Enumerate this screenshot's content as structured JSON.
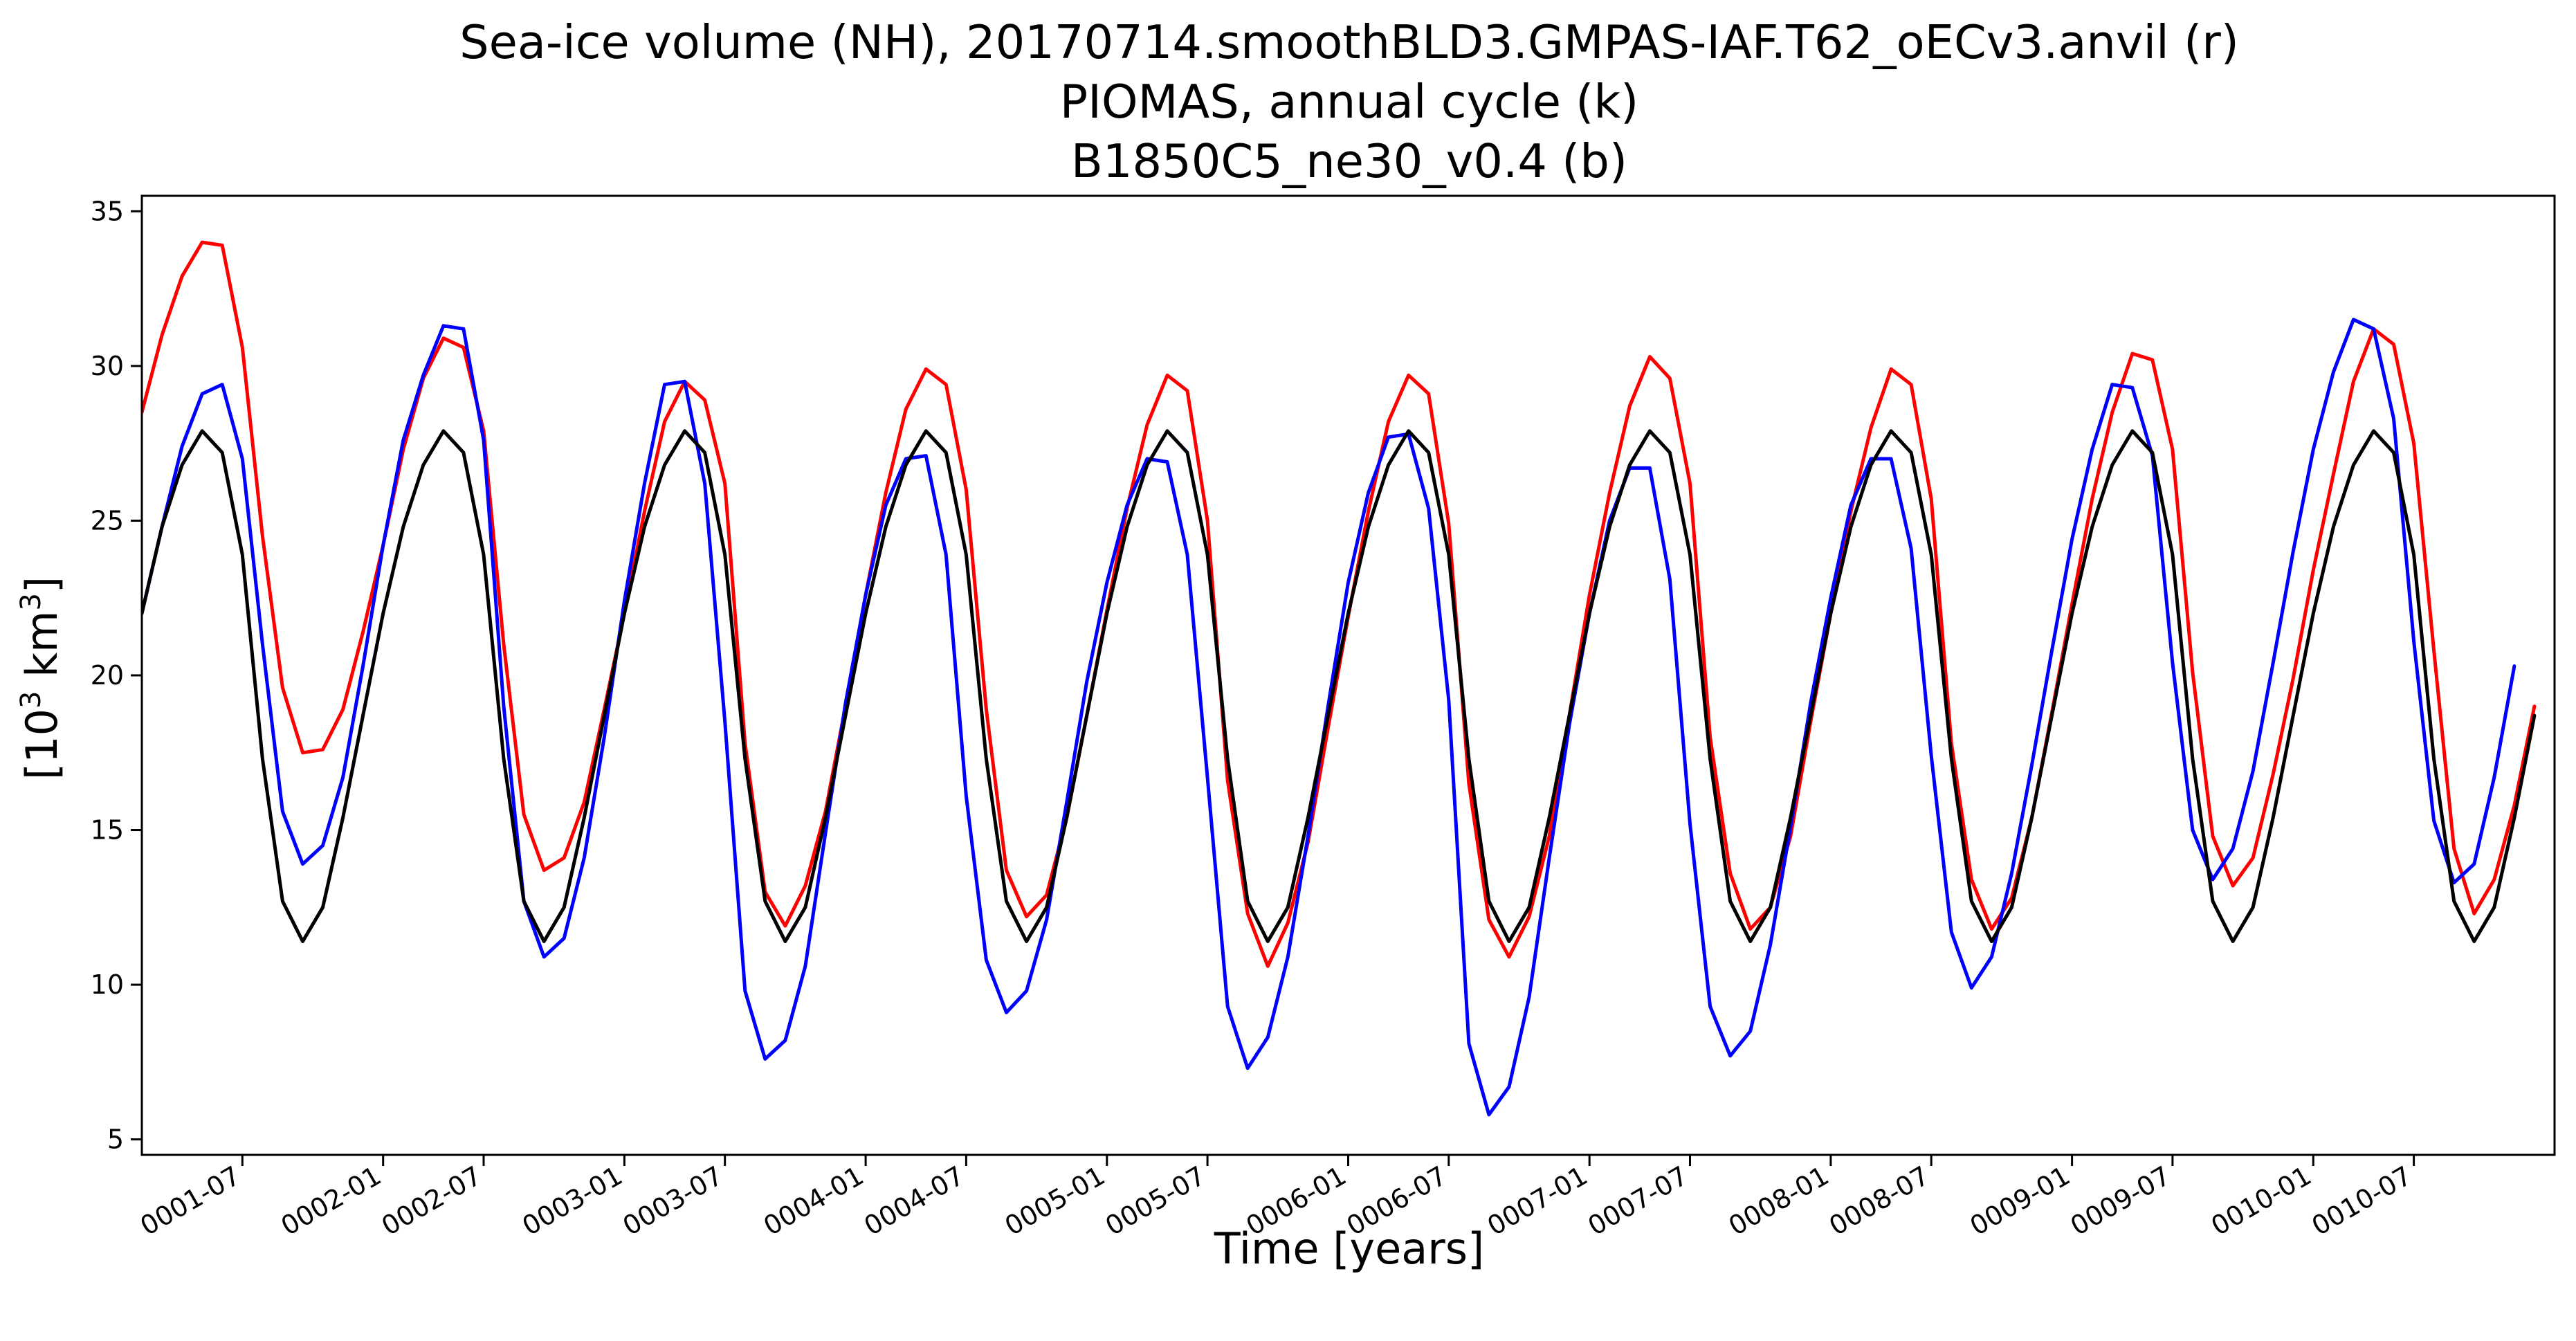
{
  "chart_data": {
    "type": "line",
    "title": [
      "Sea-ice volume (NH), 20170714.smoothBLD3.GMPAS-IAF.T62_oECv3.anvil (r)",
      "PIOMAS, annual cycle (k)",
      "B1850C5_ne30_v0.4 (b)"
    ],
    "xlabel": "Time [years]",
    "ylabel": "[10³ km³]",
    "ylabel_base": "[10",
    "ylabel_exp1": "3",
    "ylabel_mid": " km",
    "ylabel_exp2": "3",
    "ylabel_end": "]",
    "xlim": [
      1,
      121
    ],
    "ylim": [
      4.5,
      35.5
    ],
    "grid": false,
    "legend": "none",
    "x_tick_months": [
      6,
      13,
      18,
      25,
      30,
      37,
      42,
      49,
      54,
      61,
      66,
      73,
      78,
      85,
      90,
      97,
      102,
      109,
      114
    ],
    "x_tick_labels": [
      "0001-07",
      "0002-01",
      "0002-07",
      "0003-01",
      "0003-07",
      "0004-01",
      "0004-07",
      "0005-01",
      "0005-07",
      "0006-01",
      "0006-07",
      "0007-01",
      "0007-07",
      "0008-01",
      "0008-07",
      "0009-01",
      "0009-07",
      "0010-01",
      "0010-07"
    ],
    "y_ticks": [
      5,
      10,
      15,
      20,
      25,
      30,
      35
    ],
    "y_tick_labels": [
      "5",
      "10",
      "15",
      "20",
      "25",
      "30",
      "35"
    ],
    "series": [
      {
        "color": "#ff0000",
        "values": [
          28.5,
          31.0,
          32.9,
          34.0,
          33.9,
          30.6,
          24.5,
          19.6,
          17.5,
          17.6,
          18.9,
          21.4,
          24.2,
          27.3,
          29.6,
          30.9,
          30.6,
          27.9,
          21.0,
          15.5,
          13.7,
          14.1,
          15.9,
          18.9,
          22.0,
          25.3,
          28.2,
          29.5,
          28.9,
          26.2,
          17.8,
          13.0,
          11.9,
          13.2,
          15.6,
          19.0,
          22.6,
          25.9,
          28.6,
          29.9,
          29.4,
          26.0,
          18.9,
          13.7,
          12.2,
          12.9,
          15.4,
          18.7,
          22.1,
          25.4,
          28.1,
          29.7,
          29.2,
          25.0,
          16.6,
          12.3,
          10.6,
          12.0,
          14.6,
          18.3,
          21.9,
          25.3,
          28.2,
          29.7,
          29.1,
          24.9,
          16.5,
          12.1,
          10.9,
          12.2,
          14.8,
          18.7,
          22.6,
          25.9,
          28.7,
          30.3,
          29.6,
          26.2,
          18.0,
          13.6,
          11.8,
          12.5,
          14.8,
          18.5,
          22.0,
          25.3,
          28.0,
          29.9,
          29.4,
          25.7,
          17.8,
          13.4,
          11.8,
          12.8,
          15.4,
          18.8,
          22.3,
          25.7,
          28.5,
          30.4,
          30.2,
          27.3,
          20.1,
          14.8,
          13.2,
          14.1,
          16.8,
          19.9,
          23.4,
          26.5,
          29.5,
          31.2,
          30.7,
          27.5,
          20.8,
          14.4,
          12.3,
          13.4,
          15.8,
          19.0
        ]
      },
      {
        "color": "#0000ff",
        "values": [
          22.0,
          24.8,
          27.4,
          29.1,
          29.4,
          27.0,
          21.0,
          15.6,
          13.9,
          14.5,
          16.7,
          20.3,
          24.2,
          27.6,
          29.7,
          31.3,
          31.2,
          27.6,
          19.0,
          12.7,
          10.9,
          11.5,
          14.1,
          18.0,
          22.4,
          26.2,
          29.4,
          29.5,
          26.2,
          18.5,
          9.8,
          7.6,
          8.2,
          10.6,
          14.9,
          19.1,
          22.6,
          25.5,
          27.0,
          27.1,
          23.9,
          16.1,
          10.8,
          9.1,
          9.8,
          12.1,
          15.9,
          19.8,
          23.0,
          25.5,
          27.0,
          26.9,
          23.9,
          16.7,
          9.3,
          7.3,
          8.3,
          10.9,
          14.8,
          19.0,
          23.0,
          25.9,
          27.7,
          27.8,
          25.4,
          19.2,
          8.1,
          5.8,
          6.7,
          9.6,
          14.1,
          18.4,
          22.0,
          25.0,
          26.7,
          26.7,
          23.1,
          15.2,
          9.3,
          7.7,
          8.5,
          11.3,
          15.1,
          19.1,
          22.5,
          25.5,
          27.0,
          27.0,
          24.1,
          17.4,
          11.7,
          9.9,
          10.9,
          13.6,
          17.1,
          20.8,
          24.4,
          27.3,
          29.4,
          29.3,
          27.1,
          20.4,
          15.0,
          13.4,
          14.4,
          16.9,
          20.4,
          24.0,
          27.3,
          29.8,
          31.5,
          31.2,
          28.3,
          21.1,
          15.3,
          13.3,
          13.9,
          16.7,
          20.3
        ]
      },
      {
        "color": "#000000",
        "values": [
          22.0,
          24.8,
          26.8,
          27.9,
          27.2,
          23.9,
          17.3,
          12.7,
          11.4,
          12.5,
          15.4,
          18.7,
          22.0,
          24.8,
          26.8,
          27.9,
          27.2,
          23.9,
          17.3,
          12.7,
          11.4,
          12.5,
          15.4,
          18.7,
          22.0,
          24.8,
          26.8,
          27.9,
          27.2,
          23.9,
          17.3,
          12.7,
          11.4,
          12.5,
          15.4,
          18.7,
          22.0,
          24.8,
          26.8,
          27.9,
          27.2,
          23.9,
          17.3,
          12.7,
          11.4,
          12.5,
          15.4,
          18.7,
          22.0,
          24.8,
          26.8,
          27.9,
          27.2,
          23.9,
          17.3,
          12.7,
          11.4,
          12.5,
          15.4,
          18.7,
          22.0,
          24.8,
          26.8,
          27.9,
          27.2,
          23.9,
          17.3,
          12.7,
          11.4,
          12.5,
          15.4,
          18.7,
          22.0,
          24.8,
          26.8,
          27.9,
          27.2,
          23.9,
          17.3,
          12.7,
          11.4,
          12.5,
          15.4,
          18.7,
          22.0,
          24.8,
          26.8,
          27.9,
          27.2,
          23.9,
          17.3,
          12.7,
          11.4,
          12.5,
          15.4,
          18.7,
          22.0,
          24.8,
          26.8,
          27.9,
          27.2,
          23.9,
          17.3,
          12.7,
          11.4,
          12.5,
          15.4,
          18.7,
          22.0,
          24.8,
          26.8,
          27.9,
          27.2,
          23.9,
          17.3,
          12.7,
          11.4,
          12.5,
          15.4,
          18.7
        ]
      }
    ]
  }
}
